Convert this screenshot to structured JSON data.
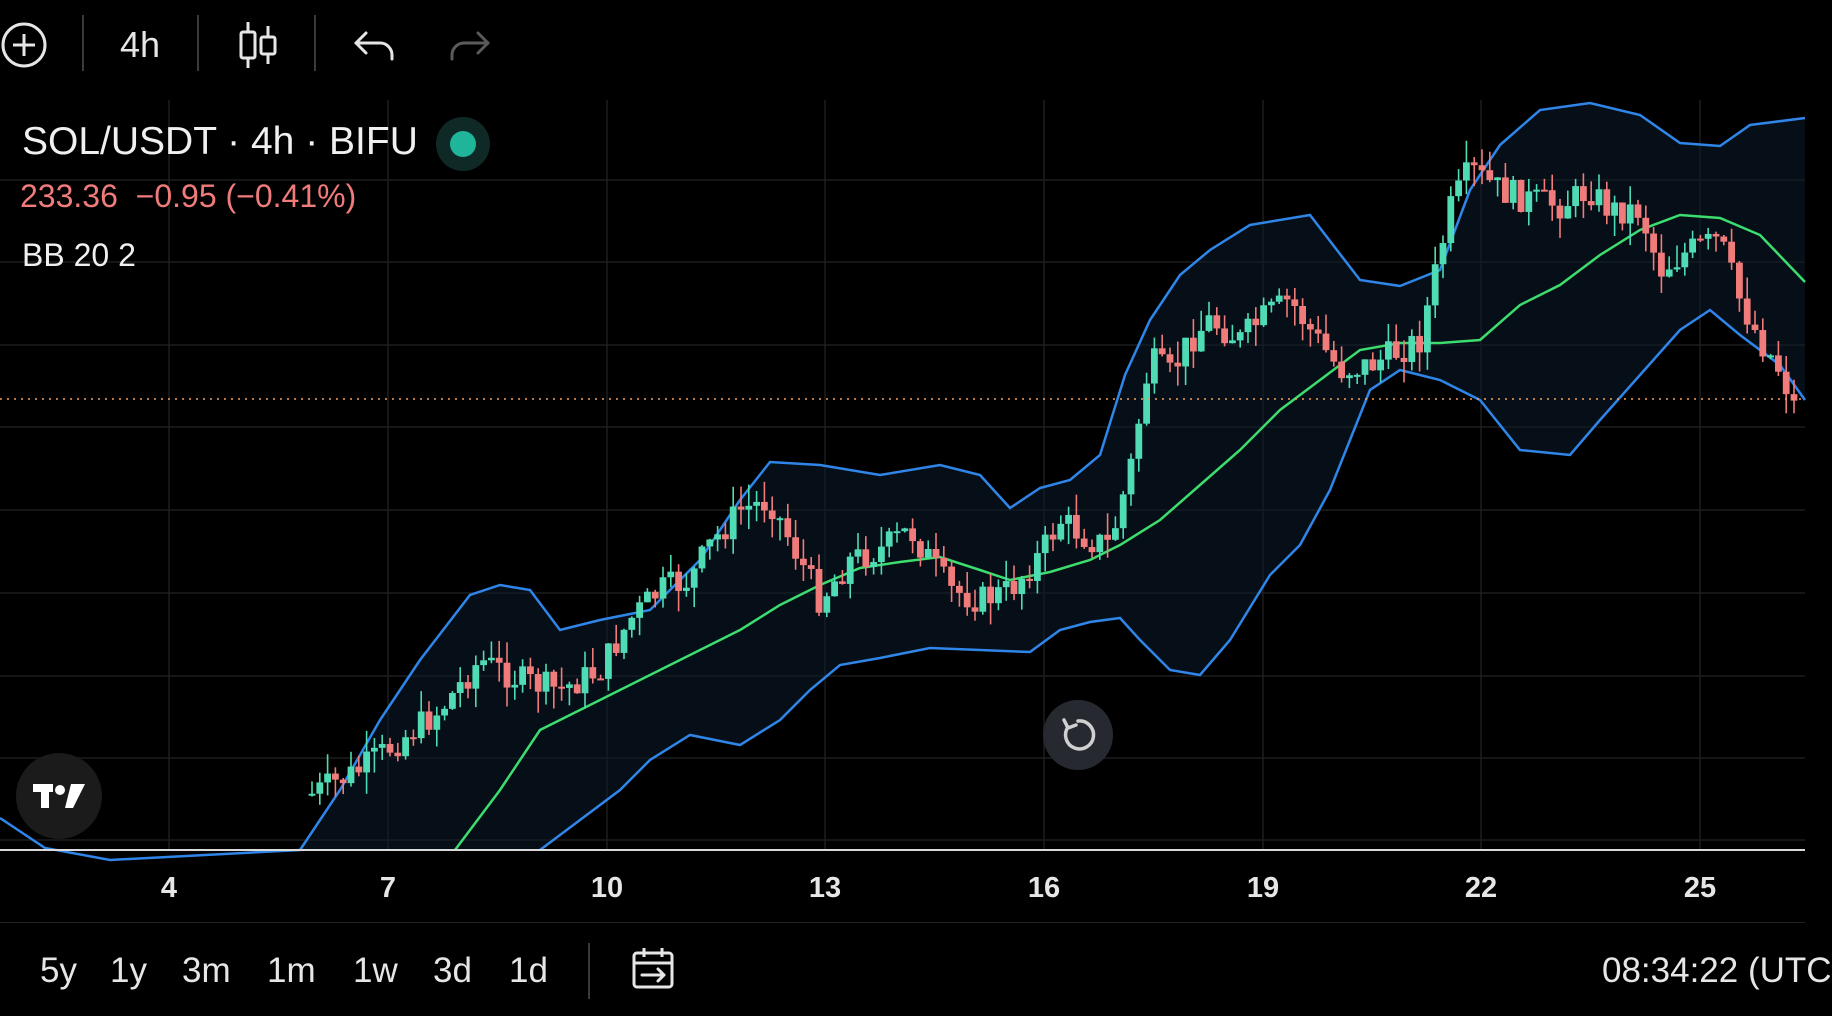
{
  "toolbar": {
    "add_icon": "plus-circle-icon",
    "interval": "4h",
    "chart_type_icon": "candles-icon",
    "undo_icon": "undo-icon",
    "redo_icon": "redo-icon"
  },
  "legend": {
    "symbol_title": "SOL/USDT · 4h · BIFU",
    "price": "233.36",
    "change": "−0.95 (−0.41%)",
    "indicator": "BB 20 2"
  },
  "colors": {
    "up": "#4fdcb4",
    "down": "#f07b7b",
    "bb_band": "#2f86e8",
    "bb_basis": "#3ddc6e",
    "grid": "#1e1e1e",
    "price_line": "#f0a060",
    "status": "#1fb59a"
  },
  "bottom_bar": {
    "ranges": [
      "5y",
      "1y",
      "3m",
      "1m",
      "1w",
      "3d",
      "1d"
    ],
    "calendar_icon": "calendar-goto-icon",
    "clock": "08:34:22 (UTC"
  },
  "chart_data": {
    "type": "candlestick",
    "symbol": "SOL/USDT",
    "interval": "4h",
    "x_ticks": [
      "4",
      "7",
      "10",
      "13",
      "16",
      "19",
      "22",
      "25"
    ],
    "last_price": 233.36,
    "indicator": "BB 20 2",
    "grid": true
  }
}
